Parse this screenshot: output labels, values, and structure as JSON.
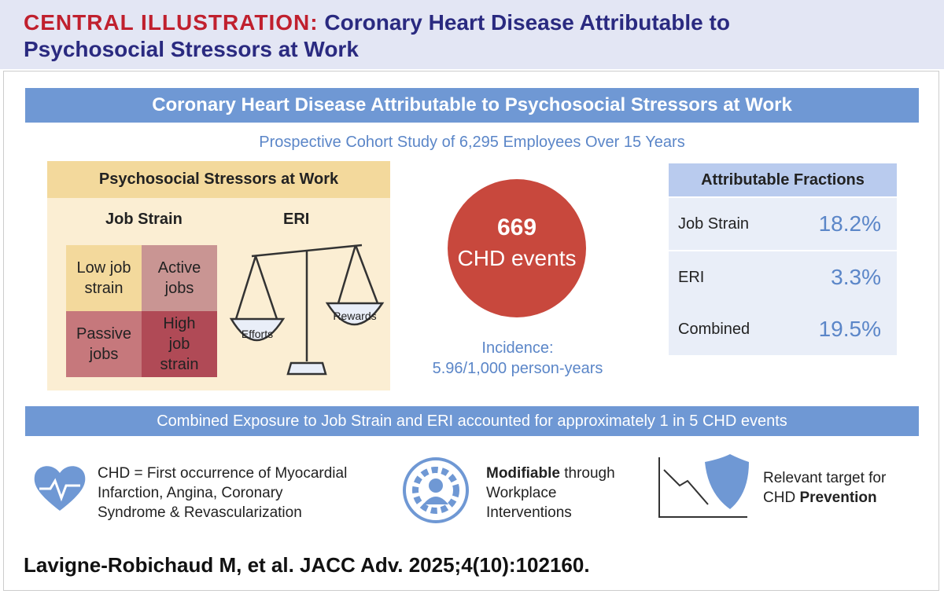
{
  "header": {
    "label": "CENTRAL ILLUSTRATION:",
    "title_lines": [
      "Coronary Heart Disease Attributable to",
      "Psychosocial Stressors at Work"
    ]
  },
  "banner": "Coronary Heart Disease Attributable to Psychosocial Stressors at Work",
  "subtitle": "Prospective Cohort Study of 6,295 Employees Over 15 Years",
  "stressors": {
    "title": "Psychosocial Stressors at Work",
    "job_strain": "Job Strain",
    "eri": "ERI",
    "quadrants": [
      [
        "Low job",
        "strain"
      ],
      [
        "Active",
        "jobs"
      ],
      [
        "Passive",
        "jobs"
      ],
      [
        "High",
        "job",
        "strain"
      ]
    ],
    "scale": {
      "left": "Efforts",
      "right": "Rewards"
    }
  },
  "events": {
    "count": "669",
    "label": "CHD events",
    "incidence": [
      "Incidence:",
      "5.96/1,000 person-years"
    ]
  },
  "fractions": {
    "title": "Attributable Fractions",
    "rows": [
      [
        "Job Strain",
        "18.2%"
      ],
      [
        "ERI",
        "3.3%"
      ],
      [
        "Combined",
        "19.5%"
      ]
    ]
  },
  "conclusion": "Combined Exposure to Job Strain and ERI accounted for approximately 1 in 5 CHD events",
  "notes": [
    {
      "lines": [
        "CHD = First occurrence of Myocardial",
        "Infarction, Angina, Coronary",
        "Syndrome & Revascularization"
      ]
    },
    {
      "bold": "Modifiable",
      "rest": " through",
      "lines": [
        "Workplace",
        "Interventions"
      ]
    },
    {
      "lines": [
        "Relevant target for"
      ],
      "rest": "CHD ",
      "bold": "Prevention"
    }
  ],
  "citation": "Lavigne-Robichaud M, et al. JACC Adv. 2025;4(10):102160."
}
